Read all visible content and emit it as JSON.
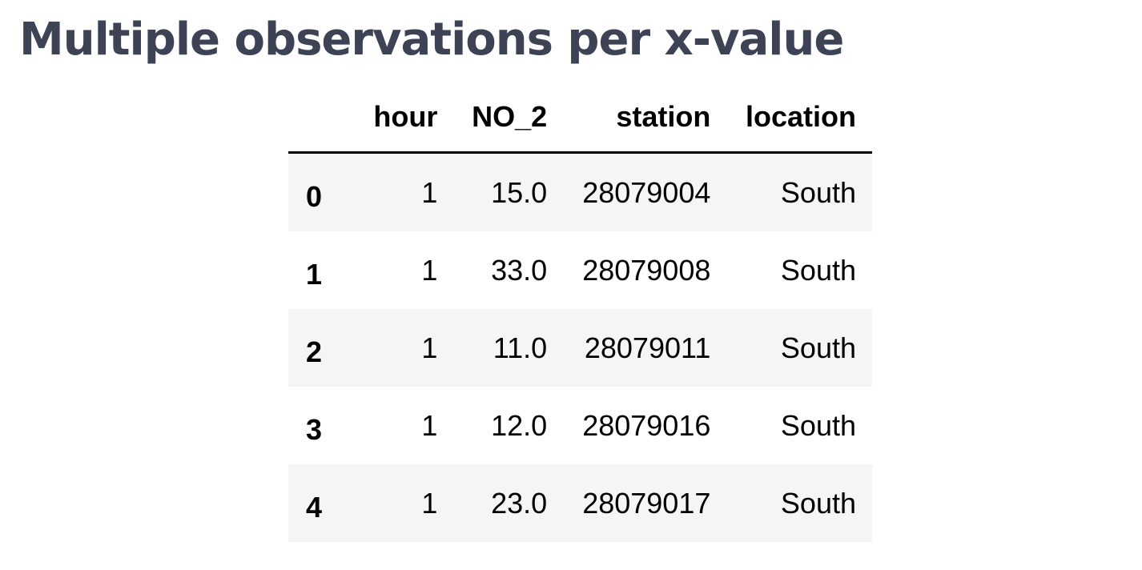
{
  "title": "Multiple observations per x-value",
  "table": {
    "index_header": "",
    "columns": [
      "hour",
      "NO_2",
      "station",
      "location"
    ],
    "rows": [
      {
        "index": "0",
        "hour": "1",
        "no2": "15.0",
        "station": "28079004",
        "location": "South"
      },
      {
        "index": "1",
        "hour": "1",
        "no2": "33.0",
        "station": "28079008",
        "location": "South"
      },
      {
        "index": "2",
        "hour": "1",
        "no2": "11.0",
        "station": "28079011",
        "location": "South"
      },
      {
        "index": "3",
        "hour": "1",
        "no2": "12.0",
        "station": "28079016",
        "location": "South"
      },
      {
        "index": "4",
        "hour": "1",
        "no2": "23.0",
        "station": "28079017",
        "location": "South"
      }
    ]
  }
}
